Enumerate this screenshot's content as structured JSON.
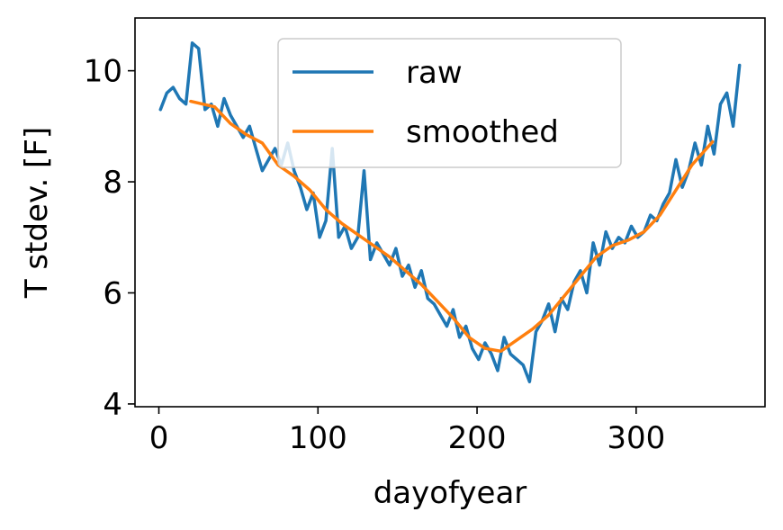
{
  "chart_data": {
    "type": "line",
    "xlabel": "dayofyear",
    "ylabel": "T stdev. [F]",
    "xlim": [
      -15,
      381
    ],
    "ylim": [
      3.95,
      10.95
    ],
    "xticks": [
      0,
      100,
      200,
      300
    ],
    "yticks": [
      4,
      6,
      8,
      10
    ],
    "grid": false,
    "legend_position": "top-center",
    "series": [
      {
        "name": "raw",
        "color": "#1f77b4",
        "x": [
          1,
          5,
          9,
          13,
          17,
          21,
          25,
          29,
          33,
          37,
          41,
          45,
          49,
          53,
          57,
          61,
          65,
          69,
          73,
          77,
          81,
          85,
          89,
          93,
          97,
          101,
          105,
          109,
          113,
          117,
          121,
          125,
          129,
          133,
          137,
          141,
          145,
          149,
          153,
          157,
          161,
          165,
          169,
          173,
          177,
          181,
          185,
          189,
          193,
          197,
          201,
          205,
          209,
          213,
          217,
          221,
          225,
          229,
          233,
          237,
          241,
          245,
          249,
          253,
          257,
          261,
          265,
          269,
          273,
          277,
          281,
          285,
          289,
          293,
          297,
          301,
          305,
          309,
          313,
          317,
          321,
          325,
          329,
          333,
          337,
          341,
          345,
          349,
          353,
          357,
          361,
          365
        ],
        "values": [
          9.3,
          9.6,
          9.7,
          9.5,
          9.4,
          10.5,
          10.4,
          9.3,
          9.4,
          9.0,
          9.5,
          9.2,
          9.0,
          8.8,
          9.0,
          8.6,
          8.2,
          8.4,
          8.6,
          8.3,
          8.7,
          8.2,
          7.9,
          7.5,
          7.8,
          7.0,
          7.3,
          8.6,
          7.0,
          7.2,
          6.8,
          7.0,
          8.2,
          6.6,
          6.9,
          6.7,
          6.5,
          6.8,
          6.3,
          6.5,
          6.1,
          6.4,
          5.9,
          5.8,
          5.6,
          5.4,
          5.7,
          5.2,
          5.4,
          5.0,
          4.8,
          5.1,
          4.9,
          4.6,
          5.2,
          4.9,
          4.8,
          4.7,
          4.4,
          5.3,
          5.5,
          5.8,
          5.3,
          5.9,
          5.7,
          6.2,
          6.4,
          6.0,
          6.9,
          6.5,
          7.1,
          6.8,
          7.0,
          6.9,
          7.2,
          7.0,
          7.1,
          7.4,
          7.3,
          7.6,
          7.8,
          8.4,
          7.9,
          8.2,
          8.7,
          8.3,
          9.0,
          8.5,
          9.4,
          9.6,
          9.0,
          10.1
        ]
      },
      {
        "name": "smoothed",
        "color": "#ff7f0e",
        "x": [
          20,
          35,
          45,
          55,
          65,
          75,
          85,
          95,
          105,
          115,
          125,
          135,
          145,
          155,
          165,
          175,
          185,
          195,
          205,
          215,
          225,
          235,
          245,
          255,
          265,
          275,
          285,
          295,
          305,
          315,
          325,
          335,
          348
        ],
        "values": [
          9.45,
          9.35,
          9.05,
          8.85,
          8.7,
          8.3,
          8.1,
          7.85,
          7.5,
          7.25,
          7.05,
          6.85,
          6.65,
          6.4,
          6.15,
          5.85,
          5.55,
          5.2,
          5.0,
          4.95,
          5.15,
          5.35,
          5.6,
          5.95,
          6.3,
          6.65,
          6.85,
          6.95,
          7.1,
          7.4,
          7.85,
          8.3,
          8.72
        ]
      }
    ]
  }
}
